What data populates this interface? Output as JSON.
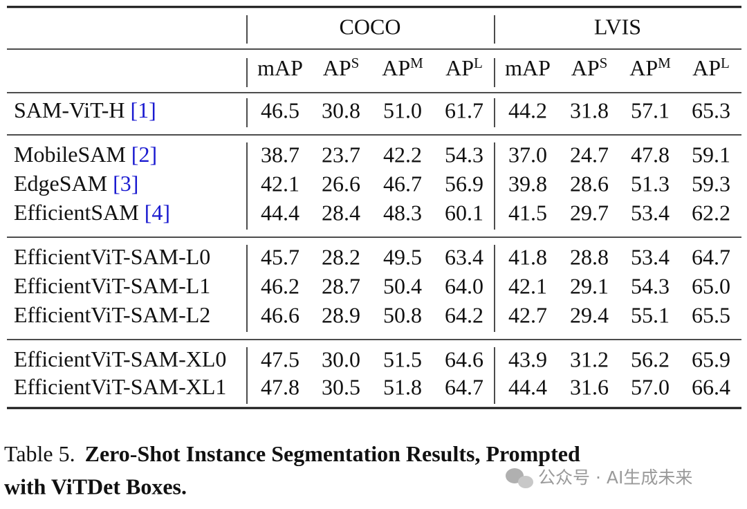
{
  "table": {
    "groups": [
      "COCO",
      "LVIS"
    ],
    "columns": [
      {
        "base": "mAP"
      },
      {
        "base": "AP",
        "sup": "S"
      },
      {
        "base": "AP",
        "sup": "M"
      },
      {
        "base": "AP",
        "sup": "L"
      },
      {
        "base": "mAP"
      },
      {
        "base": "AP",
        "sup": "S"
      },
      {
        "base": "AP",
        "sup": "M"
      },
      {
        "base": "AP",
        "sup": "L"
      }
    ],
    "row_groups": [
      [
        {
          "name": "SAM-ViT-H",
          "cite": "[1]",
          "values": [
            "46.5",
            "30.8",
            "51.0",
            "61.7",
            "44.2",
            "31.8",
            "57.1",
            "65.3"
          ]
        }
      ],
      [
        {
          "name": "MobileSAM",
          "cite": "[2]",
          "values": [
            "38.7",
            "23.7",
            "42.2",
            "54.3",
            "37.0",
            "24.7",
            "47.8",
            "59.1"
          ]
        },
        {
          "name": "EdgeSAM",
          "cite": "[3]",
          "values": [
            "42.1",
            "26.6",
            "46.7",
            "56.9",
            "39.8",
            "28.6",
            "51.3",
            "59.3"
          ]
        },
        {
          "name": "EfficientSAM",
          "cite": "[4]",
          "values": [
            "44.4",
            "28.4",
            "48.3",
            "60.1",
            "41.5",
            "29.7",
            "53.4",
            "62.2"
          ]
        }
      ],
      [
        {
          "name": "EfficientViT-SAM-L0",
          "values": [
            "45.7",
            "28.2",
            "49.5",
            "63.4",
            "41.8",
            "28.8",
            "53.4",
            "64.7"
          ]
        },
        {
          "name": "EfficientViT-SAM-L1",
          "values": [
            "46.2",
            "28.7",
            "50.4",
            "64.0",
            "42.1",
            "29.1",
            "54.3",
            "65.0"
          ]
        },
        {
          "name": "EfficientViT-SAM-L2",
          "values": [
            "46.6",
            "28.9",
            "50.8",
            "64.2",
            "42.7",
            "29.4",
            "55.1",
            "65.5"
          ]
        }
      ],
      [
        {
          "name": "EfficientViT-SAM-XL0",
          "values": [
            "47.5",
            "30.0",
            "51.5",
            "64.6",
            "43.9",
            "31.2",
            "56.2",
            "65.9"
          ]
        },
        {
          "name": "EfficientViT-SAM-XL1",
          "values": [
            "47.8",
            "30.5",
            "51.8",
            "64.7",
            "44.4",
            "31.6",
            "57.0",
            "66.4"
          ]
        }
      ]
    ]
  },
  "caption": {
    "label": "Table 5.",
    "lines": [
      "Zero-Shot Instance Segmentation Results, Prompted",
      "with ViTDet Boxes."
    ]
  },
  "watermark": "公众号 · AI生成未来"
}
